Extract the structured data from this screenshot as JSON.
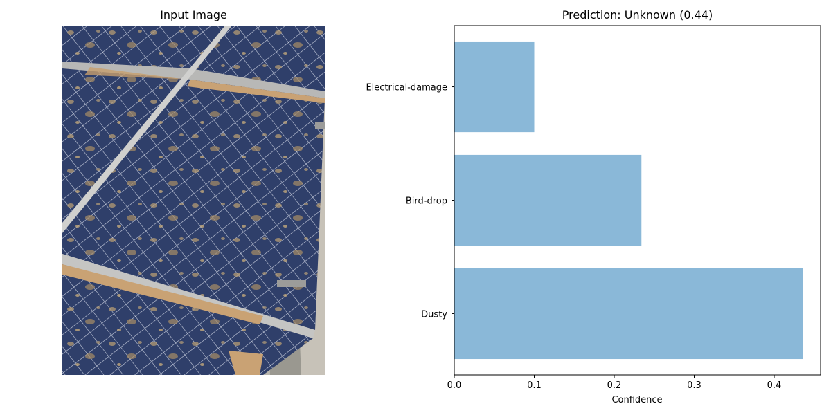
{
  "left_panel": {
    "title": "Input Image",
    "image_description": "solar-panel-photo"
  },
  "chart_data": {
    "type": "bar",
    "orientation": "horizontal",
    "title": "Prediction: Unknown (0.44)",
    "categories": [
      "Dusty",
      "Bird-drop",
      "Electrical-damage"
    ],
    "values": [
      0.436,
      0.234,
      0.1
    ],
    "xlabel": "Confidence",
    "ylabel": "",
    "xlim": [
      0,
      0.458
    ],
    "xticks": [
      0.0,
      0.1,
      0.2,
      0.3,
      0.4
    ],
    "xtick_labels": [
      "0.0",
      "0.1",
      "0.2",
      "0.3",
      "0.4"
    ],
    "grid": false,
    "bar_color": "#8ab8d8"
  }
}
